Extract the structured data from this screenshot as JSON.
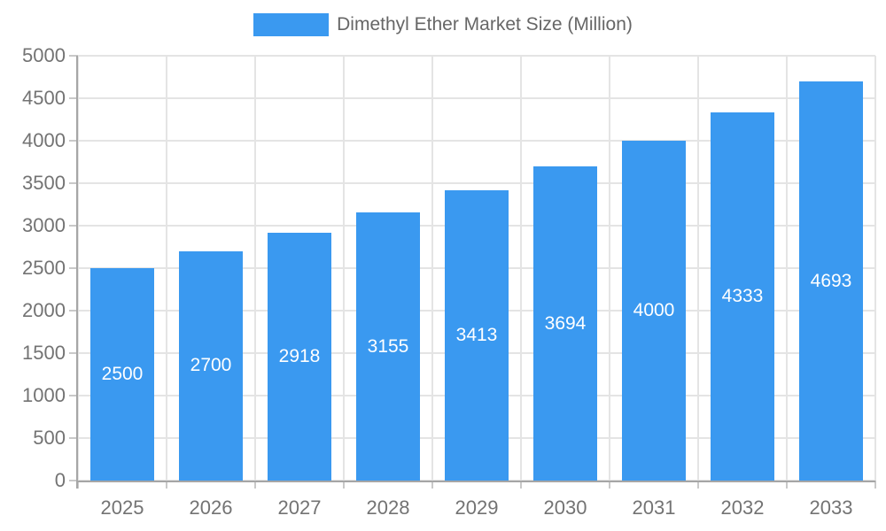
{
  "legend": {
    "label": "Dimethyl Ether Market Size (Million)"
  },
  "chart_data": {
    "type": "bar",
    "title": "",
    "categories": [
      "2025",
      "2026",
      "2027",
      "2028",
      "2029",
      "2030",
      "2031",
      "2032",
      "2033"
    ],
    "series": [
      {
        "name": "Dimethyl Ether Market Size (Million)",
        "values": [
          2500,
          2700,
          2918,
          3155,
          3413,
          3694,
          4000,
          4333,
          4693
        ]
      }
    ],
    "xlabel": "",
    "ylabel": "",
    "ylim": [
      0,
      5000
    ],
    "ytick_step": 500,
    "grid": true,
    "legend_position": "top",
    "bar_labels_visible": true,
    "colors": {
      "bar": "#3A99F0",
      "bar_label": "#FFFFFF",
      "axis_label": "#737373",
      "grid_line": "#E4E4E4",
      "axis_line": "#A6A6A6",
      "tick": "#C9C9C9",
      "legend_text": "#666666",
      "background": "#FFFFFF"
    }
  }
}
